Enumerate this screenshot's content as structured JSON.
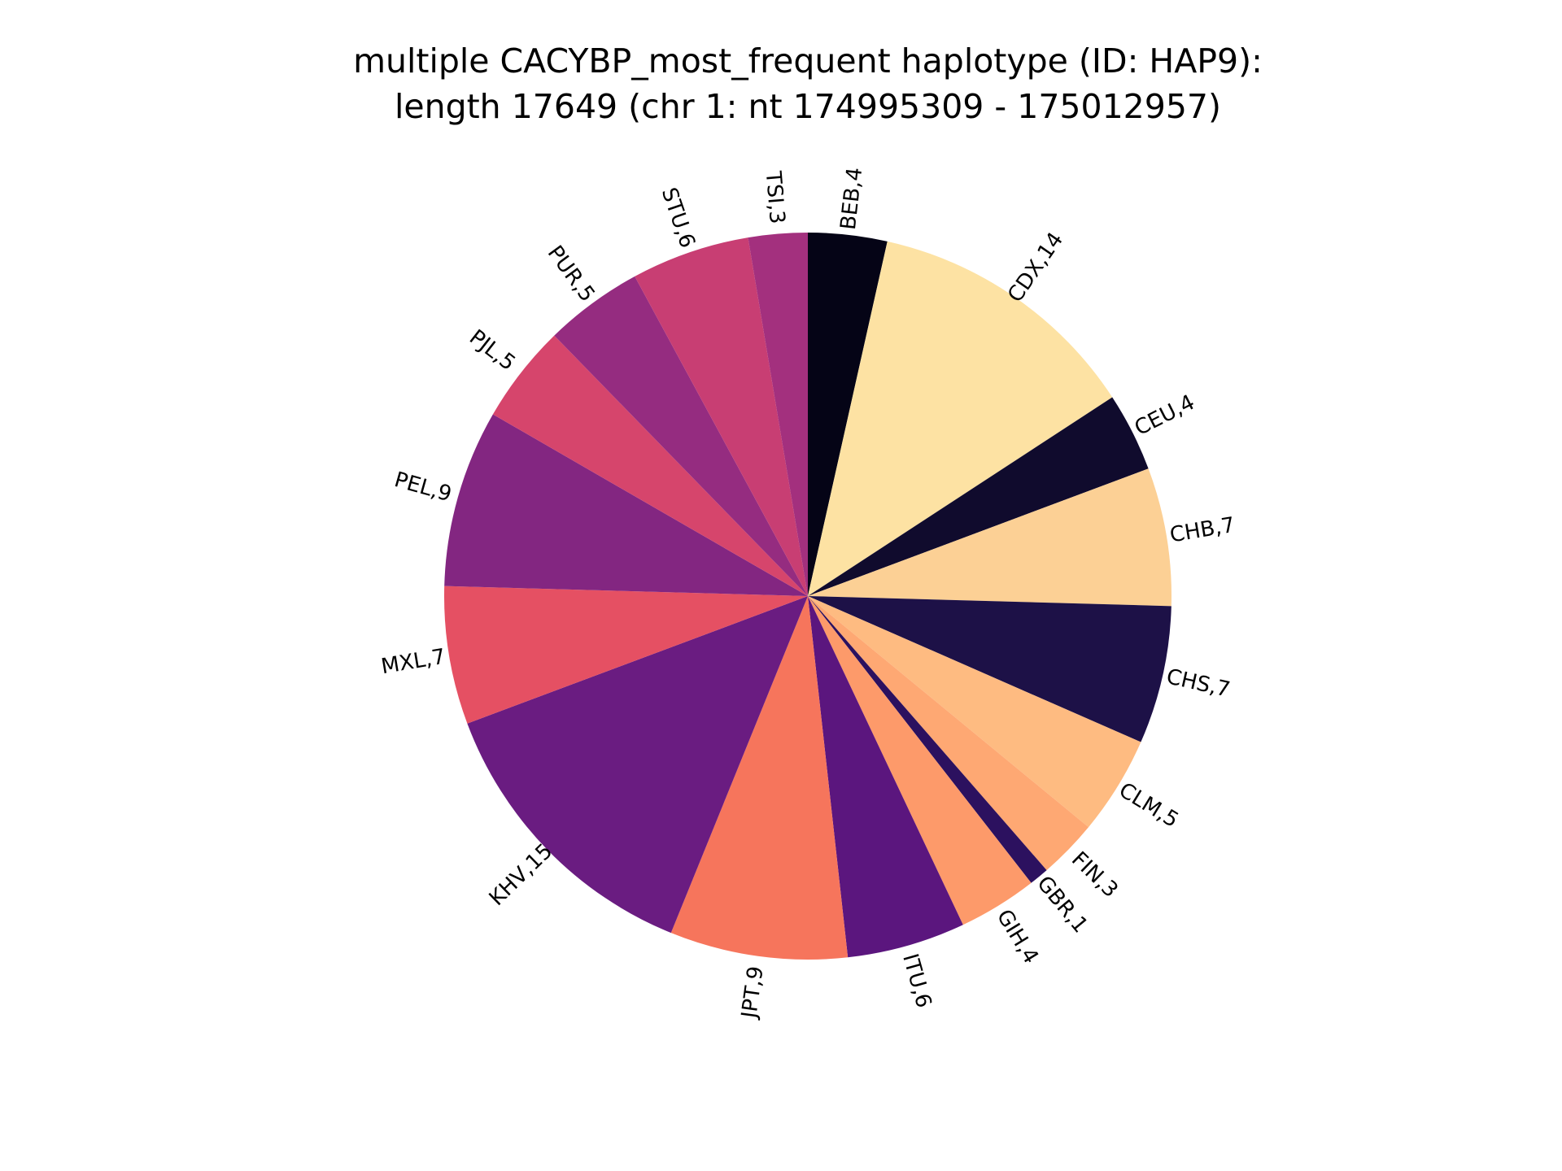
{
  "chart_data": {
    "type": "pie",
    "title_lines": [
      "multiple CACYBP_most_frequent haplotype (ID: HAP9):",
      "length 17649 (chr 1: nt 174995309 - 175012957)"
    ],
    "start_angle_deg": 90,
    "direction": "clockwise",
    "slices": [
      {
        "label": "BEB,4",
        "value": 4,
        "color": "#050416"
      },
      {
        "label": "CDX,14",
        "value": 14,
        "color": "#fde2a3"
      },
      {
        "label": "CEU,4",
        "value": 4,
        "color": "#100b2d"
      },
      {
        "label": "CHB,7",
        "value": 7,
        "color": "#fcd095"
      },
      {
        "label": "CHS,7",
        "value": 7,
        "color": "#1d1147"
      },
      {
        "label": "CLM,5",
        "value": 5,
        "color": "#febb81"
      },
      {
        "label": "FIN,3",
        "value": 3,
        "color": "#fea873"
      },
      {
        "label": "GBR,1",
        "value": 1,
        "color": "#2c115f"
      },
      {
        "label": "GIH,4",
        "value": 4,
        "color": "#fd9a6a"
      },
      {
        "label": "ITU,6",
        "value": 6,
        "color": "#5b167e"
      },
      {
        "label": "JPT,9",
        "value": 9,
        "color": "#f6755c"
      },
      {
        "label": "KHV,15",
        "value": 15,
        "color": "#6a1c81"
      },
      {
        "label": "MXL,7",
        "value": 7,
        "color": "#e55063"
      },
      {
        "label": "PEL,9",
        "value": 9,
        "color": "#832681"
      },
      {
        "label": "PJL,5",
        "value": 5,
        "color": "#d6456c"
      },
      {
        "label": "PUR,5",
        "value": 5,
        "color": "#952c80"
      },
      {
        "label": "STU,6",
        "value": 6,
        "color": "#c83e73"
      },
      {
        "label": "TSI,3",
        "value": 3,
        "color": "#a3307e"
      }
    ]
  }
}
